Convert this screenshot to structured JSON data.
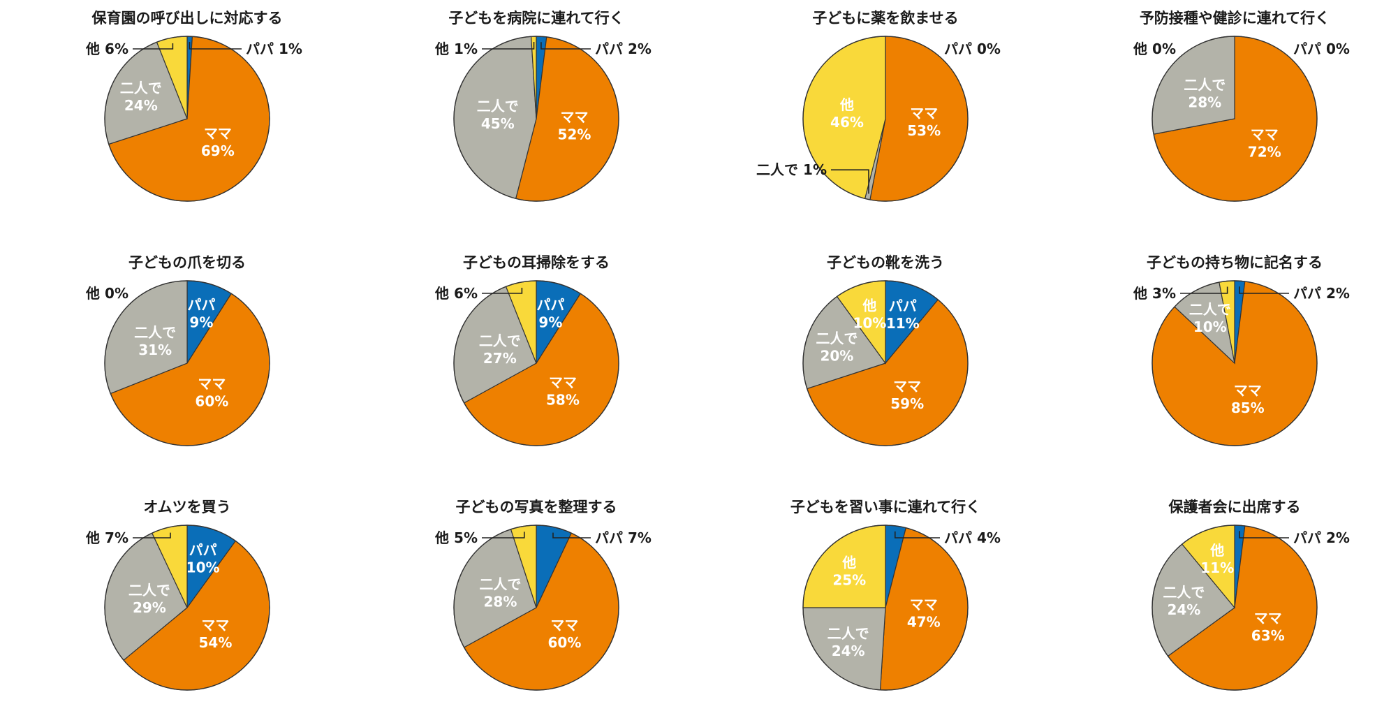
{
  "colors": {
    "papa": "#0a6eb8",
    "mama": "#ee8000",
    "futari": "#b3b3a9",
    "other": "#f9d93a",
    "outline": "#333333"
  },
  "legend_names": {
    "papa": "パパ",
    "mama": "ママ",
    "futari": "二人で",
    "other": "他"
  },
  "chart_data": [
    {
      "type": "pie",
      "title": "保育園の呼び出しに対応する",
      "slices": [
        {
          "key": "papa",
          "label": "パパ",
          "value": 1,
          "display": "1%",
          "label_position": "outside"
        },
        {
          "key": "mama",
          "label": "ママ",
          "value": 69,
          "display": "69%",
          "label_position": "inside"
        },
        {
          "key": "futari",
          "label": "二人で",
          "value": 24,
          "display": "24%",
          "label_position": "inside"
        },
        {
          "key": "other",
          "label": "他",
          "value": 6,
          "display": "6%",
          "label_position": "outside"
        }
      ]
    },
    {
      "type": "pie",
      "title": "子どもを病院に連れて行く",
      "slices": [
        {
          "key": "papa",
          "label": "パパ",
          "value": 2,
          "display": "2%",
          "label_position": "outside"
        },
        {
          "key": "mama",
          "label": "ママ",
          "value": 52,
          "display": "52%",
          "label_position": "inside"
        },
        {
          "key": "futari",
          "label": "二人で",
          "value": 45,
          "display": "45%",
          "label_position": "inside"
        },
        {
          "key": "other",
          "label": "他",
          "value": 1,
          "display": "1%",
          "label_position": "outside"
        }
      ]
    },
    {
      "type": "pie",
      "title": "子どもに薬を飲ませる",
      "slices": [
        {
          "key": "papa",
          "label": "パパ",
          "value": 0,
          "display": "0%",
          "label_position": "outside"
        },
        {
          "key": "mama",
          "label": "ママ",
          "value": 53,
          "display": "53%",
          "label_position": "inside"
        },
        {
          "key": "futari",
          "label": "二人で",
          "value": 1,
          "display": "1%",
          "label_position": "outside"
        },
        {
          "key": "other",
          "label": "他",
          "value": 46,
          "display": "46%",
          "label_position": "inside"
        }
      ]
    },
    {
      "type": "pie",
      "title": "予防接種や健診に連れて行く",
      "slices": [
        {
          "key": "papa",
          "label": "パパ",
          "value": 0,
          "display": "0%",
          "label_position": "outside"
        },
        {
          "key": "mama",
          "label": "ママ",
          "value": 72,
          "display": "72%",
          "label_position": "inside"
        },
        {
          "key": "futari",
          "label": "二人で",
          "value": 28,
          "display": "28%",
          "label_position": "inside"
        },
        {
          "key": "other",
          "label": "他",
          "value": 0,
          "display": "0%",
          "label_position": "outside"
        }
      ]
    },
    {
      "type": "pie",
      "title": "子どもの爪を切る",
      "slices": [
        {
          "key": "papa",
          "label": "パパ",
          "value": 9,
          "display": "9%",
          "label_position": "inside"
        },
        {
          "key": "mama",
          "label": "ママ",
          "value": 60,
          "display": "60%",
          "label_position": "inside"
        },
        {
          "key": "futari",
          "label": "二人で",
          "value": 31,
          "display": "31%",
          "label_position": "inside"
        },
        {
          "key": "other",
          "label": "他",
          "value": 0,
          "display": "0%",
          "label_position": "outside"
        }
      ]
    },
    {
      "type": "pie",
      "title": "子どもの耳掃除をする",
      "slices": [
        {
          "key": "papa",
          "label": "パパ",
          "value": 9,
          "display": "9%",
          "label_position": "inside"
        },
        {
          "key": "mama",
          "label": "ママ",
          "value": 58,
          "display": "58%",
          "label_position": "inside"
        },
        {
          "key": "futari",
          "label": "二人で",
          "value": 27,
          "display": "27%",
          "label_position": "inside"
        },
        {
          "key": "other",
          "label": "他",
          "value": 6,
          "display": "6%",
          "label_position": "outside"
        }
      ]
    },
    {
      "type": "pie",
      "title": "子どもの靴を洗う",
      "slices": [
        {
          "key": "papa",
          "label": "パパ",
          "value": 11,
          "display": "11%",
          "label_position": "inside"
        },
        {
          "key": "mama",
          "label": "ママ",
          "value": 59,
          "display": "59%",
          "label_position": "inside"
        },
        {
          "key": "futari",
          "label": "二人で",
          "value": 20,
          "display": "20%",
          "label_position": "inside"
        },
        {
          "key": "other",
          "label": "他",
          "value": 10,
          "display": "10%",
          "label_position": "inside"
        }
      ]
    },
    {
      "type": "pie",
      "title": "子どもの持ち物に記名する",
      "slices": [
        {
          "key": "papa",
          "label": "パパ",
          "value": 2,
          "display": "2%",
          "label_position": "outside"
        },
        {
          "key": "mama",
          "label": "ママ",
          "value": 85,
          "display": "85%",
          "label_position": "inside"
        },
        {
          "key": "futari",
          "label": "二人で",
          "value": 10,
          "display": "10%",
          "label_position": "inside"
        },
        {
          "key": "other",
          "label": "他",
          "value": 3,
          "display": "3%",
          "label_position": "outside"
        }
      ]
    },
    {
      "type": "pie",
      "title": "オムツを買う",
      "slices": [
        {
          "key": "papa",
          "label": "パパ",
          "value": 10,
          "display": "10%",
          "label_position": "inside"
        },
        {
          "key": "mama",
          "label": "ママ",
          "value": 54,
          "display": "54%",
          "label_position": "inside"
        },
        {
          "key": "futari",
          "label": "二人で",
          "value": 29,
          "display": "29%",
          "label_position": "inside"
        },
        {
          "key": "other",
          "label": "他",
          "value": 7,
          "display": "7%",
          "label_position": "outside"
        }
      ]
    },
    {
      "type": "pie",
      "title": "子どもの写真を整理する",
      "slices": [
        {
          "key": "papa",
          "label": "パパ",
          "value": 7,
          "display": "7%",
          "label_position": "outside"
        },
        {
          "key": "mama",
          "label": "ママ",
          "value": 60,
          "display": "60%",
          "label_position": "inside"
        },
        {
          "key": "futari",
          "label": "二人で",
          "value": 28,
          "display": "28%",
          "label_position": "inside"
        },
        {
          "key": "other",
          "label": "他",
          "value": 5,
          "display": "5%",
          "label_position": "outside"
        }
      ]
    },
    {
      "type": "pie",
      "title": "子どもを習い事に連れて行く",
      "slices": [
        {
          "key": "papa",
          "label": "パパ",
          "value": 4,
          "display": "4%",
          "label_position": "outside"
        },
        {
          "key": "mama",
          "label": "ママ",
          "value": 47,
          "display": "47%",
          "label_position": "inside"
        },
        {
          "key": "futari",
          "label": "二人で",
          "value": 24,
          "display": "24%",
          "label_position": "inside"
        },
        {
          "key": "other",
          "label": "他",
          "value": 25,
          "display": "25%",
          "label_position": "inside"
        }
      ]
    },
    {
      "type": "pie",
      "title": "保護者会に出席する",
      "slices": [
        {
          "key": "papa",
          "label": "パパ",
          "value": 2,
          "display": "2%",
          "label_position": "outside"
        },
        {
          "key": "mama",
          "label": "ママ",
          "value": 63,
          "display": "63%",
          "label_position": "inside"
        },
        {
          "key": "futari",
          "label": "二人で",
          "value": 24,
          "display": "24%",
          "label_position": "inside"
        },
        {
          "key": "other",
          "label": "他",
          "value": 11,
          "display": "11%",
          "label_position": "inside"
        }
      ]
    }
  ]
}
